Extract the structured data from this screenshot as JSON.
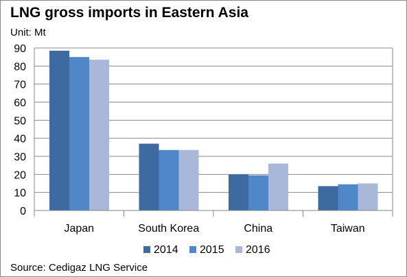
{
  "title": "LNG gross imports in Eastern Asia",
  "unit": "Unit: Mt",
  "source": "Source: Cedigaz LNG Service",
  "chart_data": {
    "type": "bar",
    "categories": [
      "Japan",
      "South Korea",
      "China",
      "Taiwan"
    ],
    "series": [
      {
        "name": "2014",
        "color": "#3e6aa2",
        "values": [
          88.5,
          37,
          20,
          13.5
        ]
      },
      {
        "name": "2015",
        "color": "#4f87c8",
        "values": [
          85,
          33.5,
          19.5,
          14.5
        ]
      },
      {
        "name": "2016",
        "color": "#a9b8d9",
        "values": [
          83.5,
          33.5,
          26,
          15
        ]
      }
    ],
    "ylim": [
      0,
      90
    ],
    "yticks": [
      0,
      10,
      20,
      30,
      40,
      50,
      60,
      70,
      80,
      90
    ],
    "grid": true,
    "legend": "bottom"
  }
}
